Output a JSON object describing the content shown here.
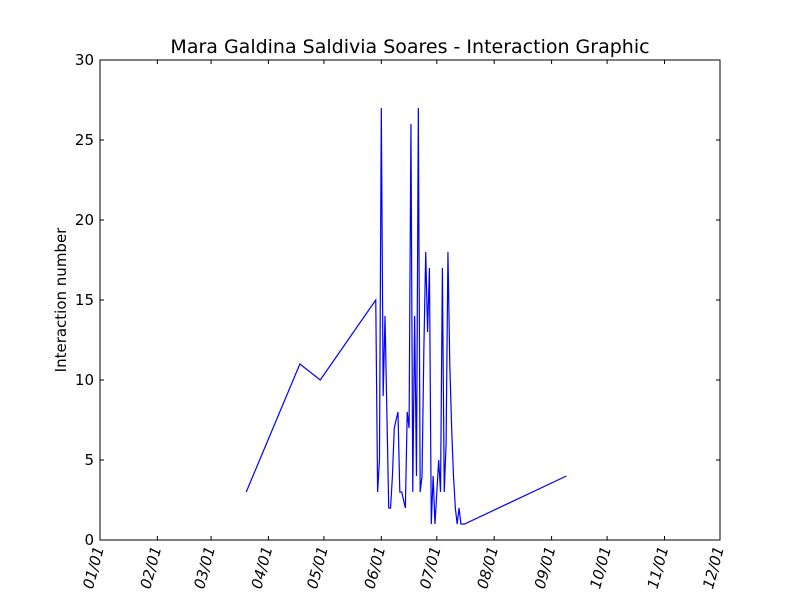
{
  "chart_data": {
    "type": "line",
    "title": "Mara Galdina Saldivia Soares - Interaction Graphic",
    "xlabel": "",
    "ylabel": "Interaction number",
    "x_axis_type": "date",
    "xlim": [
      "01/01",
      "12/01"
    ],
    "ylim": [
      0,
      30
    ],
    "xticks": [
      "01/01",
      "02/01",
      "03/01",
      "04/01",
      "05/01",
      "06/01",
      "07/01",
      "08/01",
      "09/01",
      "10/01",
      "11/01",
      "12/01"
    ],
    "yticks": [
      0,
      5,
      10,
      15,
      20,
      25,
      30
    ],
    "grid": false,
    "legend": "none",
    "series": [
      {
        "color": "#0000ff",
        "x": [
          "03/20",
          "04/18",
          "04/29",
          "05/29",
          "05/30",
          "05/31",
          "06/01",
          "06/02",
          "06/03",
          "06/05",
          "06/06",
          "06/07",
          "06/08",
          "06/10",
          "06/11",
          "06/12",
          "06/14",
          "06/15",
          "06/16",
          "06/17",
          "06/18",
          "06/19",
          "06/20",
          "06/21",
          "06/22",
          "06/23",
          "06/24",
          "06/25",
          "06/26",
          "06/27",
          "06/28",
          "06/29",
          "06/30",
          "07/01",
          "07/02",
          "07/03",
          "07/04",
          "07/05",
          "07/06",
          "07/07",
          "07/08",
          "07/09",
          "07/10",
          "07/11",
          "07/12",
          "07/13",
          "07/14",
          "07/16",
          "09/09"
        ],
        "y": [
          3,
          11,
          10,
          15,
          3,
          5,
          27,
          9,
          14,
          2,
          2,
          4,
          7,
          8,
          3,
          3,
          2,
          8,
          7,
          26,
          3,
          14,
          4,
          27,
          3,
          4,
          12,
          18,
          13,
          17,
          1,
          4,
          1,
          3,
          5,
          3,
          17,
          3,
          6,
          18,
          11,
          7,
          4,
          2,
          1,
          2,
          1,
          1,
          4
        ]
      }
    ]
  }
}
